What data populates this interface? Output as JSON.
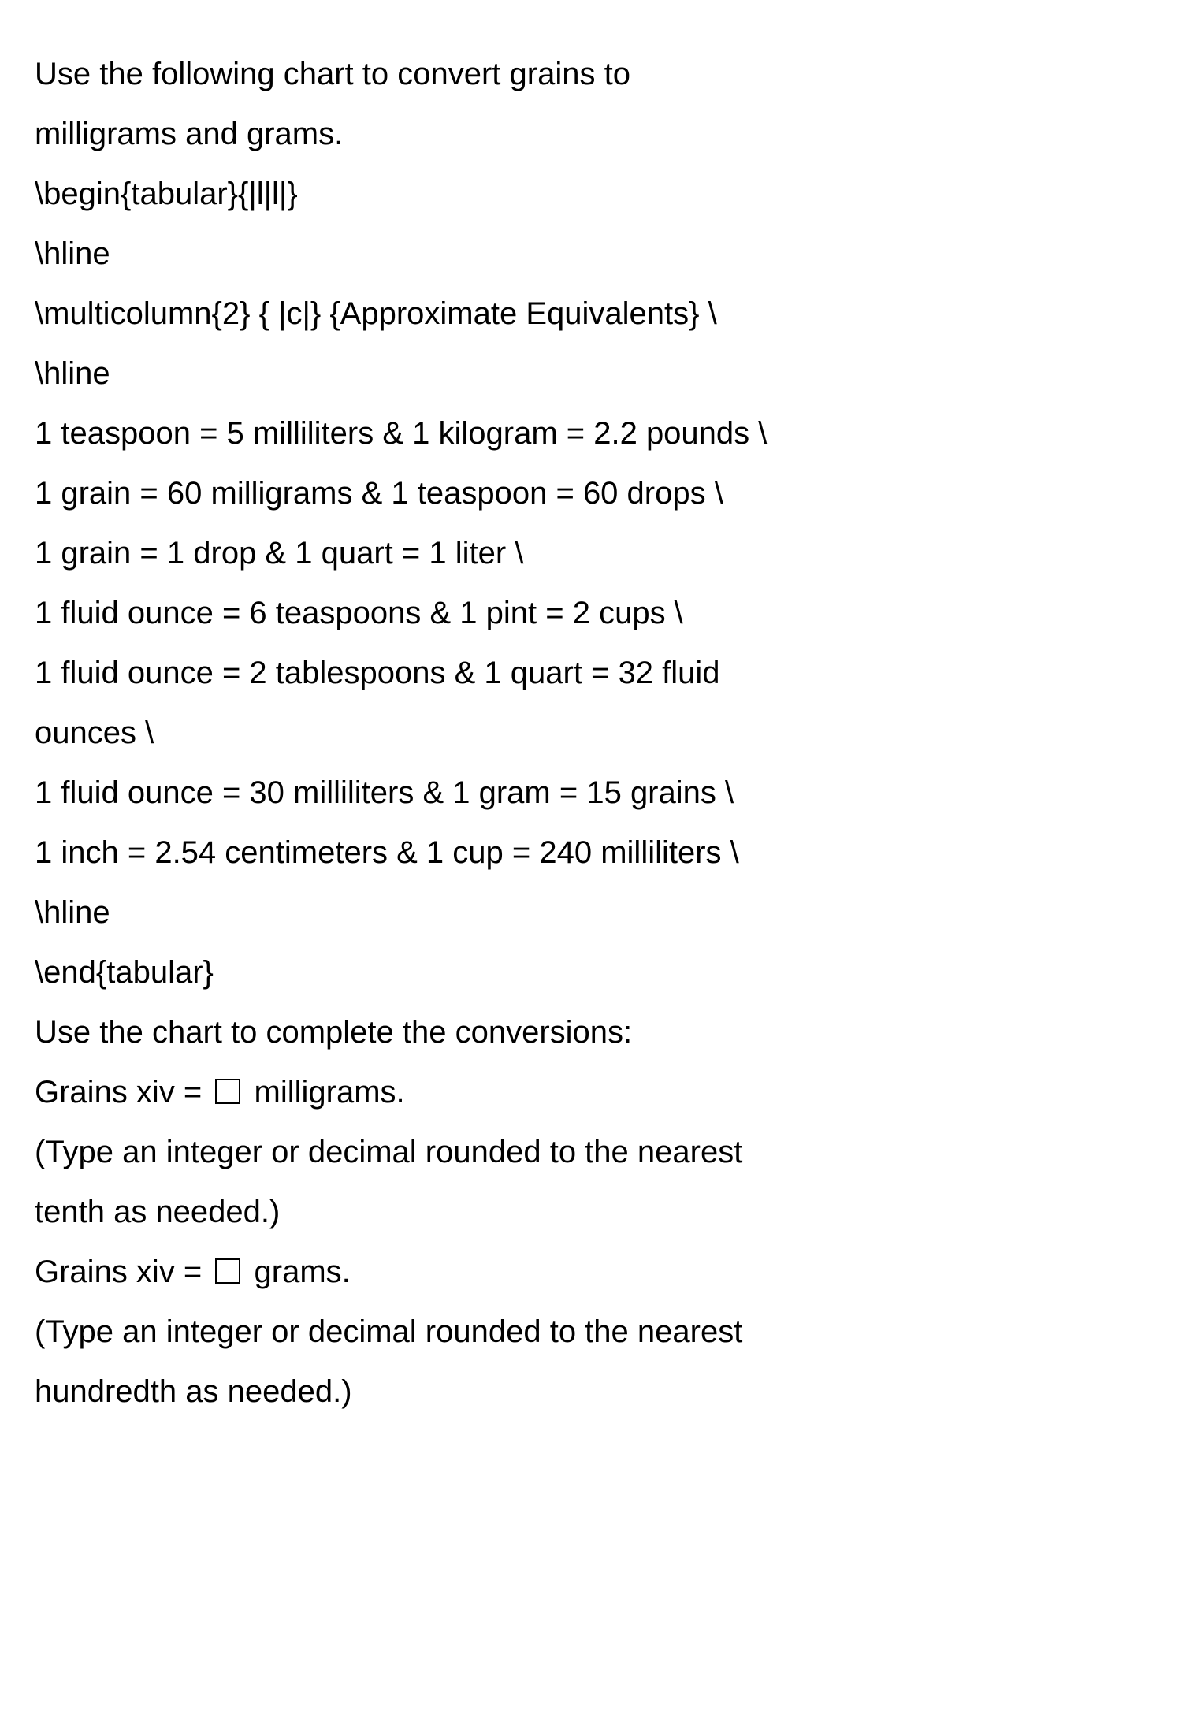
{
  "intro_line1": "Use the following chart to convert grains to",
  "intro_line2": "milligrams and grams.",
  "latex_begin": "\\begin{tabular}{|l|l|}",
  "latex_hline": "\\hline",
  "latex_multicol": "\\multicolumn{2} { |c|} {Approximate Equivalents} \\",
  "row1": "1 teaspoon = 5 milliliters & 1 kilogram = 2.2 pounds \\",
  "row2": "1 grain = 60 milligrams & 1 teaspoon = 60 drops \\",
  "row3": "1 grain = 1 drop & 1 quart = 1 liter \\",
  "row4": "1 fluid ounce = 6 teaspoons & 1 pint = 2 cups \\",
  "row5a": "1 fluid ounce = 2 tablespoons & 1 quart = 32 fluid",
  "row5b": "ounces \\",
  "row6": "1 fluid ounce = 30 milliliters & 1 gram = 15 grains \\",
  "row7": "1 inch = 2.54 centimeters & 1 cup = 240 milliliters \\",
  "latex_end": "\\end{tabular}",
  "instruction": "Use the chart to complete the conversions:",
  "q1_before": "Grains xiv = ",
  "q1_after": " milligrams.",
  "q1_hint_a": "(Type an integer or decimal rounded to the nearest",
  "q1_hint_b": "tenth as needed.)",
  "q2_before": "Grains xiv = ",
  "q2_after": " grams.",
  "q2_hint_a": "(Type an integer or decimal rounded to the nearest",
  "q2_hint_b": "hundredth as needed.)"
}
